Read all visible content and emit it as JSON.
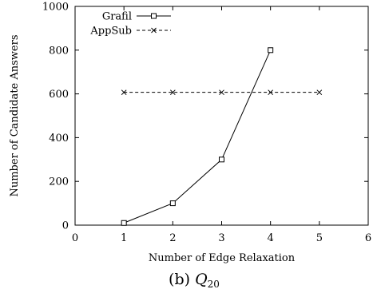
{
  "chart_data": {
    "type": "line",
    "xlabel": "Number of Edge Relaxation",
    "ylabel": "Number of Candidate Answers",
    "xlim": [
      0,
      6
    ],
    "ylim": [
      0,
      1000
    ],
    "xticks": [
      0,
      1,
      2,
      3,
      4,
      5,
      6
    ],
    "yticks": [
      0,
      200,
      400,
      600,
      800,
      1000
    ],
    "grid": false,
    "legend_position": "top-left",
    "series": [
      {
        "name": "Grafil",
        "style": "solid",
        "marker": "square",
        "x": [
          1,
          2,
          3,
          4
        ],
        "values": [
          10,
          100,
          300,
          800
        ]
      },
      {
        "name": "AppSub",
        "style": "dashed",
        "marker": "x",
        "x": [
          1,
          2,
          3,
          4,
          5
        ],
        "values": [
          607,
          607,
          607,
          607,
          607
        ]
      }
    ]
  },
  "caption": {
    "prefix": "(b) ",
    "symbol": "Q",
    "subscript": "20"
  }
}
